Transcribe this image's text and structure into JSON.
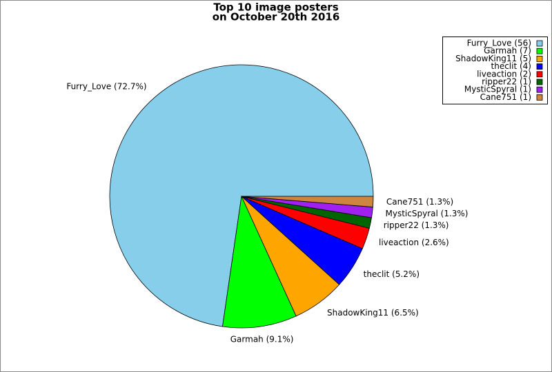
{
  "chart_data": {
    "type": "pie",
    "title": [
      "Top 10 image posters",
      "on October 20th 2016"
    ],
    "categories": [
      "Furry_Love (56)",
      "Garmah (7)",
      "ShadowKing11 (5)",
      "theclit (4)",
      "liveaction (2)",
      "ripper22 (1)",
      "MysticSpyral (1)",
      "Cane751 (1)"
    ],
    "values": [
      72.7,
      9.1,
      6.5,
      5.2,
      2.6,
      1.3,
      1.3,
      1.3
    ],
    "value_labels": [
      "Furry_Love (72.7%)",
      "Garmah (9.1%)",
      "ShadowKing11 (6.5%)",
      "theclit (5.2%)",
      "liveaction (2.6%)",
      "ripper22 (1.3%)",
      "MysticSpyral (1.3%)",
      "Cane751 (1.3%)"
    ],
    "colors": [
      "#87ceeb",
      "#00ff00",
      "#ffa500",
      "#0000ff",
      "#ff0000",
      "#006400",
      "#a020f0",
      "#cd853f"
    ],
    "legend": "upper right"
  }
}
